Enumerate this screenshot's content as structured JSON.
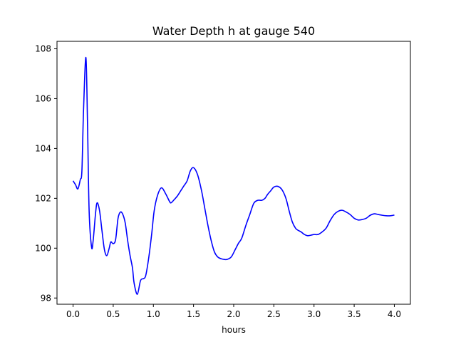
{
  "chart_data": {
    "type": "line",
    "title": "Water Depth h at gauge 540",
    "xlabel": "hours",
    "ylabel": "",
    "xlim": [
      -0.2,
      4.2
    ],
    "ylim": [
      97.75,
      108.3
    ],
    "xticks": [
      0.0,
      0.5,
      1.0,
      1.5,
      2.0,
      2.5,
      3.0,
      3.5,
      4.0
    ],
    "xtick_labels": [
      "0.0",
      "0.5",
      "1.0",
      "1.5",
      "2.0",
      "2.5",
      "3.0",
      "3.5",
      "4.0"
    ],
    "yticks": [
      98,
      100,
      102,
      104,
      106,
      108
    ],
    "ytick_labels": [
      "98",
      "100",
      "102",
      "104",
      "106",
      "108"
    ],
    "grid": false,
    "series": [
      {
        "color": "#0000ff",
        "x": [
          0.0,
          0.03,
          0.06,
          0.09,
          0.11,
          0.13,
          0.16,
          0.18,
          0.2,
          0.23,
          0.25,
          0.28,
          0.3,
          0.33,
          0.36,
          0.39,
          0.42,
          0.45,
          0.47,
          0.5,
          0.53,
          0.56,
          0.59,
          0.62,
          0.65,
          0.68,
          0.71,
          0.74,
          0.76,
          0.8,
          0.84,
          0.88,
          0.9,
          0.92,
          0.95,
          0.98,
          1.01,
          1.05,
          1.1,
          1.15,
          1.2,
          1.22,
          1.26,
          1.3,
          1.34,
          1.38,
          1.42,
          1.46,
          1.5,
          1.55,
          1.6,
          1.64,
          1.68,
          1.72,
          1.76,
          1.8,
          1.84,
          1.88,
          1.92,
          1.97,
          2.02,
          2.06,
          2.1,
          2.15,
          2.2,
          2.25,
          2.3,
          2.35,
          2.39,
          2.42,
          2.46,
          2.5,
          2.55,
          2.6,
          2.65,
          2.69,
          2.73,
          2.77,
          2.8,
          2.84,
          2.88,
          2.92,
          2.96,
          3.0,
          3.05,
          3.1,
          3.15,
          3.2,
          3.25,
          3.3,
          3.35,
          3.4,
          3.45,
          3.5,
          3.55,
          3.6,
          3.65,
          3.7,
          3.75,
          3.8,
          3.85,
          3.9,
          3.95,
          4.0
        ],
        "y": [
          102.7,
          102.55,
          102.38,
          102.75,
          103.1,
          105.5,
          107.65,
          105.0,
          101.5,
          100.05,
          100.3,
          101.4,
          101.82,
          101.5,
          100.7,
          99.95,
          99.7,
          100.0,
          100.25,
          100.18,
          100.35,
          101.2,
          101.45,
          101.35,
          101.0,
          100.3,
          99.7,
          99.2,
          98.6,
          98.15,
          98.7,
          98.78,
          98.85,
          99.15,
          99.8,
          100.6,
          101.5,
          102.1,
          102.42,
          102.2,
          101.88,
          101.82,
          101.95,
          102.1,
          102.3,
          102.5,
          102.7,
          103.1,
          103.23,
          102.95,
          102.3,
          101.6,
          100.9,
          100.3,
          99.85,
          99.65,
          99.58,
          99.55,
          99.55,
          99.65,
          99.95,
          100.2,
          100.4,
          100.9,
          101.35,
          101.8,
          101.92,
          101.92,
          102.0,
          102.15,
          102.3,
          102.45,
          102.48,
          102.35,
          102.0,
          101.5,
          101.05,
          100.8,
          100.72,
          100.65,
          100.55,
          100.5,
          100.52,
          100.55,
          100.55,
          100.65,
          100.8,
          101.1,
          101.35,
          101.48,
          101.52,
          101.45,
          101.35,
          101.2,
          101.13,
          101.15,
          101.2,
          101.32,
          101.38,
          101.35,
          101.32,
          101.3,
          101.3,
          101.33
        ]
      }
    ]
  }
}
